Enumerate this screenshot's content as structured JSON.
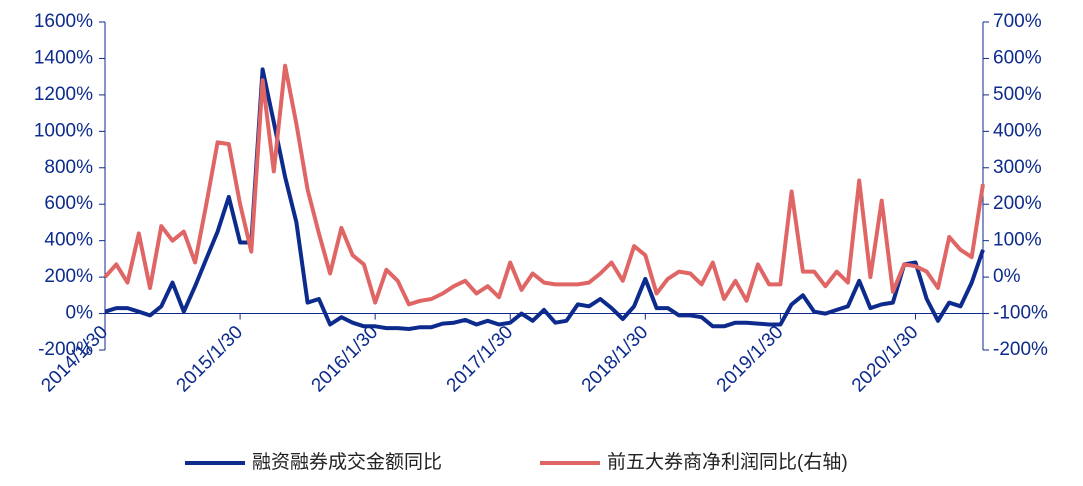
{
  "chart_data": {
    "type": "line",
    "categories": [
      "2014/1/30",
      null,
      null,
      null,
      null,
      null,
      null,
      null,
      null,
      null,
      null,
      null,
      "2015/1/30",
      null,
      null,
      null,
      null,
      null,
      null,
      null,
      null,
      null,
      null,
      null,
      "2016/1/30",
      null,
      null,
      null,
      null,
      null,
      null,
      null,
      null,
      null,
      null,
      null,
      "2017/1/30",
      null,
      null,
      null,
      null,
      null,
      null,
      null,
      null,
      null,
      null,
      null,
      "2018/1/30",
      null,
      null,
      null,
      null,
      null,
      null,
      null,
      null,
      null,
      null,
      null,
      "2019/1/30",
      null,
      null,
      null,
      null,
      null,
      null,
      null,
      null,
      null,
      null,
      null,
      "2020/1/30",
      null,
      null,
      null,
      null,
      null,
      null
    ],
    "series": [
      {
        "name": "融资融券成交金额同比",
        "color": "#0d2b8c",
        "axis": "y",
        "values": [
          10,
          30,
          30,
          10,
          -10,
          40,
          170,
          10,
          150,
          300,
          450,
          640,
          390,
          390,
          1340,
          1050,
          750,
          500,
          60,
          80,
          -60,
          -20,
          -50,
          -70,
          -70,
          -80,
          -80,
          -85,
          -75,
          -75,
          -55,
          -50,
          -35,
          -60,
          -40,
          -60,
          -50,
          0,
          -40,
          20,
          -50,
          -40,
          50,
          40,
          80,
          30,
          -30,
          40,
          190,
          30,
          30,
          -10,
          -10,
          -20,
          -70,
          -70,
          -50,
          -50,
          -55,
          -60,
          -60,
          50,
          100,
          10,
          0,
          20,
          40,
          180,
          30,
          50,
          60,
          270,
          280,
          80,
          -40,
          60,
          40,
          170,
          350
        ]
      },
      {
        "name": "前五大券商净利润同比(右轴)",
        "color": "#e06666",
        "axis": "y2",
        "values": [
          0,
          35,
          -15,
          120,
          -30,
          140,
          100,
          125,
          40,
          200,
          370,
          365,
          200,
          70,
          540,
          290,
          580,
          420,
          240,
          120,
          10,
          135,
          60,
          35,
          -70,
          20,
          -10,
          -75,
          -65,
          -60,
          -45,
          -25,
          -10,
          -45,
          -25,
          -55,
          40,
          -35,
          10,
          -15,
          -20,
          -20,
          -20,
          -15,
          10,
          40,
          -10,
          85,
          60,
          -45,
          -5,
          15,
          10,
          -20,
          40,
          -60,
          -10,
          -65,
          35,
          -20,
          -20,
          235,
          15,
          15,
          -25,
          15,
          -15,
          265,
          0,
          210,
          -40,
          35,
          30,
          15,
          -30,
          110,
          75,
          55,
          255
        ]
      }
    ],
    "ylim": [
      -200,
      1600
    ],
    "yticks": [
      {
        "value": -200,
        "label": "-200%"
      },
      {
        "value": 0,
        "label": "0%"
      },
      {
        "value": 200,
        "label": "200%"
      },
      {
        "value": 400,
        "label": "400%"
      },
      {
        "value": 600,
        "label": "600%"
      },
      {
        "value": 800,
        "label": "800%"
      },
      {
        "value": 1000,
        "label": "1000%"
      },
      {
        "value": 1200,
        "label": "1200%"
      },
      {
        "value": 1400,
        "label": "1400%"
      },
      {
        "value": 1600,
        "label": "1600%"
      }
    ],
    "y2lim": [
      -200,
      700
    ],
    "y2ticks": [
      {
        "value": -200,
        "label": "-200%"
      },
      {
        "value": -100,
        "label": "-100%"
      },
      {
        "value": 0,
        "label": "0%"
      },
      {
        "value": 100,
        "label": "100%"
      },
      {
        "value": 200,
        "label": "200%"
      },
      {
        "value": 300,
        "label": "300%"
      },
      {
        "value": 400,
        "label": "400%"
      },
      {
        "value": 500,
        "label": "500%"
      },
      {
        "value": 600,
        "label": "600%"
      },
      {
        "value": 700,
        "label": "700%"
      }
    ],
    "grid": false,
    "legend": "bottom"
  }
}
